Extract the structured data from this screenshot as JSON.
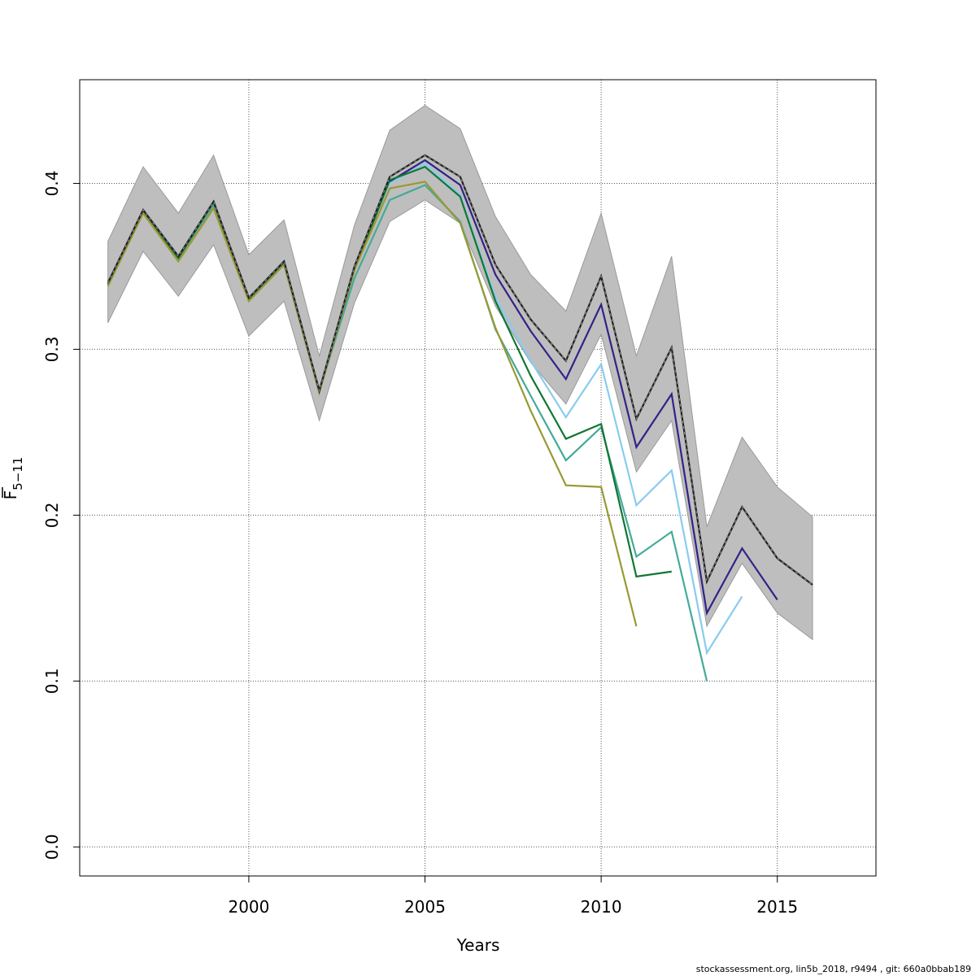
{
  "chart_data": {
    "type": "line",
    "xlabel": "Years",
    "ylabel_main": "F",
    "ylabel_sub": "5−11",
    "xlim": [
      1995.2,
      2017.8
    ],
    "ylim": [
      -0.0175,
      0.4625
    ],
    "x_ticks": [
      2000,
      2005,
      2010,
      2015
    ],
    "y_ticks": [
      0.0,
      0.1,
      0.2,
      0.3,
      0.4
    ],
    "grid": true,
    "band": {
      "color": "#bebebe",
      "x": [
        1996,
        1997,
        1998,
        1999,
        2000,
        2001,
        2002,
        2003,
        2004,
        2005,
        2006,
        2007,
        2008,
        2009,
        2010,
        2011,
        2012,
        2013,
        2014,
        2015,
        2016
      ],
      "upper": [
        0.365,
        0.41,
        0.382,
        0.417,
        0.357,
        0.378,
        0.296,
        0.375,
        0.432,
        0.447,
        0.433,
        0.38,
        0.345,
        0.323,
        0.382,
        0.296,
        0.356,
        0.193,
        0.247,
        0.217,
        0.199
      ],
      "lower": [
        0.316,
        0.359,
        0.332,
        0.363,
        0.308,
        0.329,
        0.257,
        0.328,
        0.377,
        0.39,
        0.376,
        0.326,
        0.292,
        0.267,
        0.309,
        0.226,
        0.257,
        0.133,
        0.171,
        0.141,
        0.125
      ]
    },
    "series": [
      {
        "color": "#222222",
        "dashed": true,
        "x": [
          1996,
          1997,
          1998,
          1999,
          2000,
          2001,
          2002,
          2003,
          2004,
          2005,
          2006,
          2007,
          2008,
          2009,
          2010,
          2011,
          2012,
          2013,
          2014,
          2015,
          2016
        ],
        "values": [
          0.34,
          0.384,
          0.356,
          0.389,
          0.331,
          0.353,
          0.275,
          0.35,
          0.404,
          0.417,
          0.404,
          0.351,
          0.318,
          0.293,
          0.344,
          0.258,
          0.301,
          0.16,
          0.205,
          0.174,
          0.158
        ]
      },
      {
        "color": "#332288",
        "dashed": false,
        "x": [
          1996,
          1997,
          1998,
          1999,
          2000,
          2001,
          2002,
          2003,
          2004,
          2005,
          2006,
          2007,
          2008,
          2009,
          2010,
          2011,
          2012,
          2013,
          2014,
          2015
        ],
        "values": [
          0.34,
          0.384,
          0.356,
          0.389,
          0.331,
          0.353,
          0.275,
          0.35,
          0.401,
          0.414,
          0.399,
          0.345,
          0.311,
          0.282,
          0.327,
          0.241,
          0.273,
          0.141,
          0.18,
          0.149
        ]
      },
      {
        "color": "#88CCEE",
        "dashed": false,
        "x": [
          1996,
          1997,
          1998,
          1999,
          2000,
          2001,
          2002,
          2003,
          2004,
          2005,
          2006,
          2007,
          2008,
          2009,
          2010,
          2011,
          2012,
          2013,
          2014
        ],
        "values": [
          0.339,
          0.384,
          0.356,
          0.388,
          0.331,
          0.353,
          0.275,
          0.35,
          0.4,
          0.412,
          0.393,
          0.331,
          0.293,
          0.259,
          0.291,
          0.206,
          0.227,
          0.117,
          0.151
        ]
      },
      {
        "color": "#44AA99",
        "dashed": false,
        "x": [
          1996,
          1997,
          1998,
          1999,
          2000,
          2001,
          2002,
          2003,
          2004,
          2005,
          2006,
          2007,
          2008,
          2009,
          2010,
          2011,
          2012,
          2013
        ],
        "values": [
          0.339,
          0.383,
          0.355,
          0.387,
          0.33,
          0.352,
          0.275,
          0.343,
          0.39,
          0.399,
          0.377,
          0.312,
          0.272,
          0.233,
          0.253,
          0.175,
          0.19,
          0.1
        ]
      },
      {
        "color": "#117733",
        "dashed": false,
        "x": [
          1996,
          1997,
          1998,
          1999,
          2000,
          2001,
          2002,
          2003,
          2004,
          2005,
          2006,
          2007,
          2008,
          2009,
          2010,
          2011,
          2012
        ],
        "values": [
          0.339,
          0.383,
          0.355,
          0.389,
          0.33,
          0.352,
          0.274,
          0.348,
          0.402,
          0.41,
          0.392,
          0.329,
          0.284,
          0.246,
          0.255,
          0.163,
          0.166
        ]
      },
      {
        "color": "#999933",
        "dashed": false,
        "x": [
          1996,
          1997,
          1998,
          1999,
          2000,
          2001,
          2002,
          2003,
          2004,
          2005,
          2006,
          2007,
          2008,
          2009,
          2010,
          2011
        ],
        "values": [
          0.338,
          0.382,
          0.353,
          0.385,
          0.329,
          0.351,
          0.274,
          0.348,
          0.397,
          0.401,
          0.376,
          0.313,
          0.263,
          0.218,
          0.217,
          0.133
        ]
      }
    ]
  },
  "footer": "stockassessment.org, lin5b_2018, r9494 , git: 660a0bbab189"
}
